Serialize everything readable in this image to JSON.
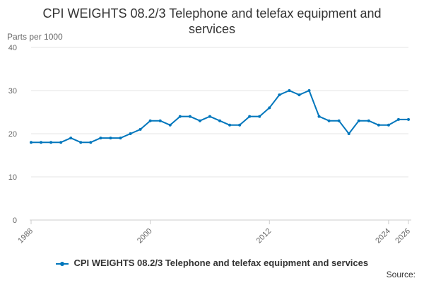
{
  "chart_data": {
    "type": "line",
    "title_line1": "CPI WEIGHTS 08.2/3 Telephone and telefax equipment and",
    "title_line2": "services",
    "ylabel": "Parts per 1000",
    "xlabel": "",
    "ylim": [
      0,
      40
    ],
    "yticks": [
      0,
      10,
      20,
      30,
      40
    ],
    "xlim": [
      1988,
      2026
    ],
    "xticks": [
      1988,
      2000,
      2012,
      2024,
      2026
    ],
    "grid": true,
    "legend_position": "bottom",
    "series": [
      {
        "name": "CPI WEIGHTS 08.2/3 Telephone and telefax equipment and services",
        "color": "#0076BC",
        "x": [
          1988,
          1989,
          1990,
          1991,
          1992,
          1993,
          1994,
          1995,
          1996,
          1997,
          1998,
          1999,
          2000,
          2001,
          2002,
          2003,
          2004,
          2005,
          2006,
          2007,
          2008,
          2009,
          2010,
          2011,
          2012,
          2013,
          2014,
          2015,
          2016,
          2017,
          2018,
          2019,
          2020,
          2021,
          2022,
          2023,
          2024,
          2025,
          2026
        ],
        "values": [
          18,
          18,
          18,
          18,
          19,
          18,
          18,
          19,
          19,
          19,
          20,
          21,
          23,
          23,
          22,
          24,
          24,
          23,
          24,
          23,
          22,
          22,
          24,
          24,
          26,
          29,
          30,
          29,
          30,
          24,
          23,
          23,
          20,
          23,
          23,
          22,
          22,
          23.3,
          23.3
        ]
      }
    ]
  },
  "source_label": "Source:"
}
